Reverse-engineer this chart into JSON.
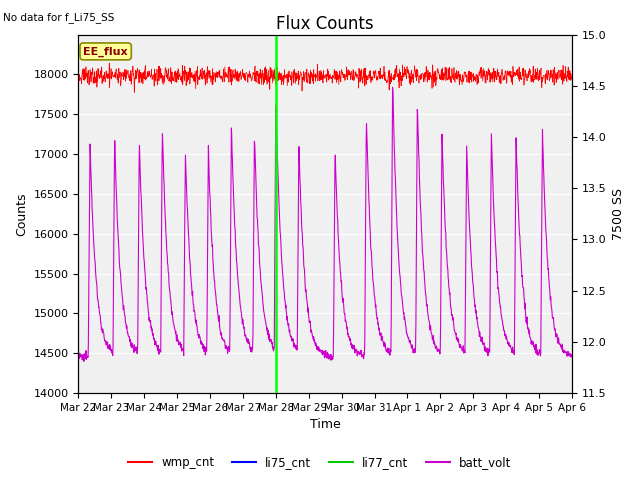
{
  "title": "Flux Counts",
  "top_left_text": "No data for f_Li75_SS",
  "xlabel": "Time",
  "ylabel_left": "Counts",
  "ylabel_right": "7500 SS",
  "annotation_box": "EE_flux",
  "ylim_left": [
    14000,
    18500
  ],
  "ylim_right": [
    11.5,
    15.0
  ],
  "yticks_left": [
    14000,
    14500,
    15000,
    15500,
    16000,
    16500,
    17000,
    17500,
    18000
  ],
  "yticks_right": [
    11.5,
    12.0,
    12.5,
    13.0,
    13.5,
    14.0,
    14.5,
    15.0
  ],
  "xtick_labels": [
    "Mar 22",
    "Mar 23",
    "Mar 24",
    "Mar 25",
    "Mar 26",
    "Mar 27",
    "Mar 28",
    "Mar 29",
    "Mar 30",
    "Mar 31",
    "Apr 1",
    "Apr 2",
    "Apr 3",
    "Apr 4",
    "Apr 5",
    "Apr 6"
  ],
  "wmp_cnt_color": "#ff0000",
  "li75_cnt_color": "#0000ff",
  "li77_cnt_color": "#00cc00",
  "batt_volt_color": "#cc00cc",
  "vline_color": "#00ff00",
  "vline_x_day": 6,
  "wmp_cnt_value": 17980,
  "wmp_noise": 55,
  "background_color": "#e0e0e0",
  "plot_bg_color": "#f0f0f0",
  "legend_entries": [
    "wmp_cnt",
    "li75_cnt",
    "li77_cnt",
    "batt_volt"
  ],
  "legend_colors": [
    "#ff0000",
    "#0000ff",
    "#00cc00",
    "#cc00cc"
  ],
  "title_fontsize": 12,
  "axis_fontsize": 9,
  "tick_fontsize": 8,
  "n_days": 15,
  "peak_days": [
    0.35,
    1.1,
    1.85,
    2.55,
    3.25,
    3.95,
    4.65,
    5.35,
    6.0,
    6.7,
    7.8,
    8.75,
    9.55,
    10.3,
    11.05,
    11.8,
    12.55,
    13.3,
    14.1
  ],
  "peak_heights_v": [
    14.0,
    14.0,
    13.97,
    14.1,
    13.85,
    13.88,
    14.12,
    14.06,
    14.4,
    13.95,
    13.88,
    14.2,
    14.55,
    14.35,
    14.05,
    13.93,
    14.05,
    14.0,
    14.1
  ],
  "base_volt": 11.85,
  "mid_volt": 13.0
}
